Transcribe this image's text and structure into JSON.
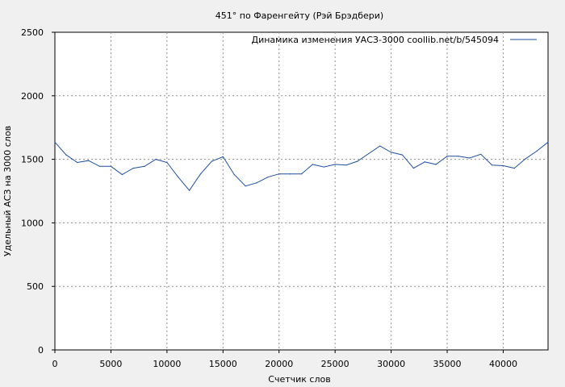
{
  "chart_data": {
    "type": "line",
    "title": "451° по Фаренгейту (Рэй Брэдбери)",
    "xlabel": "Счетчик слов",
    "ylabel": "Удельный АСЗ на 3000 слов",
    "xlim": [
      0,
      44000
    ],
    "ylim": [
      0,
      2500
    ],
    "xticks": [
      0,
      5000,
      10000,
      15000,
      20000,
      25000,
      30000,
      35000,
      40000
    ],
    "yticks": [
      0,
      500,
      1000,
      1500,
      2000,
      2500
    ],
    "grid": true,
    "legend": "top-right",
    "line_color": "#1f4fa0",
    "series": [
      {
        "name": "Динамика изменения УАСЗ-3000  coollib.net/b/545094",
        "x": [
          0,
          1000,
          2000,
          3000,
          4000,
          5000,
          6000,
          7000,
          8000,
          9000,
          10000,
          11000,
          12000,
          13000,
          14000,
          15000,
          16000,
          17000,
          18000,
          19000,
          20000,
          21000,
          22000,
          23000,
          24000,
          25000,
          26000,
          27000,
          28000,
          29000,
          30000,
          31000,
          32000,
          33000,
          34000,
          35000,
          36000,
          37000,
          38000,
          39000,
          40000,
          41000,
          42000,
          43000,
          44000
        ],
        "values": [
          1635,
          1535,
          1475,
          1490,
          1445,
          1445,
          1380,
          1430,
          1445,
          1500,
          1475,
          1360,
          1255,
          1385,
          1485,
          1520,
          1380,
          1290,
          1315,
          1360,
          1385,
          1385,
          1385,
          1460,
          1440,
          1460,
          1455,
          1485,
          1545,
          1605,
          1555,
          1535,
          1430,
          1480,
          1460,
          1525,
          1525,
          1510,
          1540,
          1455,
          1450,
          1430,
          1505,
          1565,
          1635
        ]
      }
    ]
  }
}
